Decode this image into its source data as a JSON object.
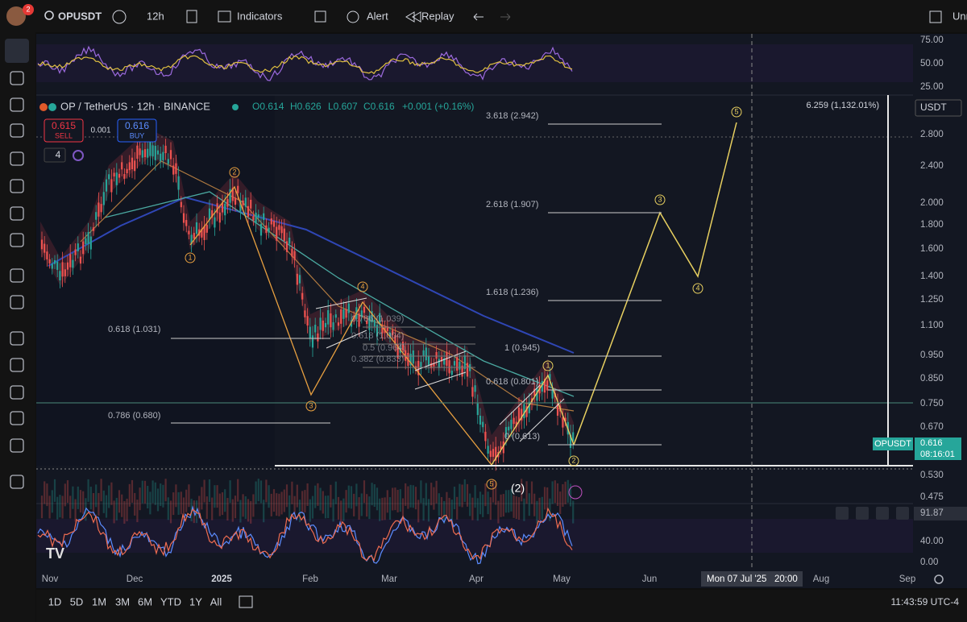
{
  "toolbar": {
    "badge": "2",
    "symbol": "OPUSDT",
    "interval": "12h",
    "indicators": "Indicators",
    "alert": "Alert",
    "replay": "Replay",
    "right": "Unr"
  },
  "legend": {
    "title": "OP / TetherUS · 12h · BINANCE",
    "open": "O0.614",
    "high": "H0.626",
    "low": "L0.607",
    "close": "C0.616",
    "change": "+0.001 (+0.16%)",
    "sell_price": "0.615",
    "sell": "SELL",
    "spread": "0.001",
    "buy_price": "0.616",
    "buy": "BUY",
    "indicator_count": "4"
  },
  "price_axis": {
    "currency": "USDT",
    "rsi": [
      "75.00",
      "50.00",
      "25.00"
    ],
    "main": [
      "2.800",
      "2.400",
      "2.000",
      "1.800",
      "1.600",
      "1.400",
      "1.250",
      "1.100",
      "0.950",
      "0.850",
      "0.750",
      "0.670",
      "0.530",
      "0.475"
    ],
    "stoch": [
      "91.87",
      "40.00",
      "0.00"
    ],
    "measure": "6.259 (1,132.01%)",
    "tag_symbol": "OPUSDT",
    "tag_price": "0.616",
    "tag_countdown": "08:16:01"
  },
  "fib_labels": {
    "right": [
      "3.618 (2.942)",
      "2.618 (1.907)",
      "1.618 (1.236)",
      "1 (0.945)",
      "0.618 (0.801)",
      "0 (0.613)"
    ],
    "left": [
      "0.618 (1.031)",
      "0.786 (0.680)"
    ],
    "faint": [
      "0.786 (1.039)",
      "0.618 (1.004)",
      "0.5 (0.964)",
      "0.382 (0.833)"
    ]
  },
  "waves": [
    "1",
    "2",
    "3",
    "4",
    "5",
    "(2)",
    "1",
    "2",
    "3",
    "4",
    "5"
  ],
  "time_axis": {
    "labels": [
      "Nov",
      "Dec",
      "2025",
      "Feb",
      "Mar",
      "Apr",
      "May",
      "Jun",
      "Aug",
      "Sep"
    ],
    "crosshair_date": "Mon 07 Jul '25",
    "crosshair_time": "20:00"
  },
  "bottom_bar": {
    "ranges": [
      "1D",
      "5D",
      "1M",
      "3M",
      "6M",
      "YTD",
      "1Y",
      "All"
    ],
    "clock": "11:43:59 UTC-4"
  }
}
